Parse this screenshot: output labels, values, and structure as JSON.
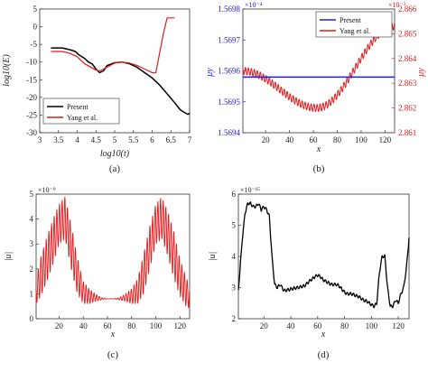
{
  "chart_data": [
    {
      "id": "a",
      "type": "line",
      "caption": "(a)",
      "xlabel": "log10(t)",
      "ylabel": "log10(E)",
      "xlim": [
        3,
        7
      ],
      "ylim": [
        -30,
        5
      ],
      "xticks": [
        "3",
        "3.5",
        "4",
        "4.5",
        "5",
        "5.5",
        "6",
        "6.5",
        "7"
      ],
      "yticks": [
        "5",
        "0",
        "-5",
        "-10",
        "-15",
        "-20",
        "-25",
        "-30"
      ],
      "legend": {
        "position": "lower-left",
        "entries": [
          "Present",
          "Yang et al."
        ]
      },
      "series": [
        {
          "name": "Present",
          "color": "#000000",
          "x": [
            3.3,
            3.6,
            3.8,
            3.95,
            4.05,
            4.2,
            4.3,
            4.4,
            4.5,
            4.6,
            4.7,
            4.8,
            5.0,
            5.2,
            5.4,
            5.6,
            5.8,
            6.0,
            6.2,
            6.4,
            6.6,
            6.75,
            6.85,
            6.95,
            7.0
          ],
          "y": [
            -6,
            -6,
            -6.5,
            -7,
            -8,
            -9,
            -10,
            -10.5,
            -12,
            -13,
            -12.5,
            -11,
            -10.2,
            -10,
            -10.5,
            -11.5,
            -13,
            -14.5,
            -16.5,
            -19,
            -21.5,
            -23.5,
            -24.2,
            -24.8,
            -24.5
          ]
        },
        {
          "name": "Yang et al.",
          "color": "#e31a1c",
          "x": [
            3.3,
            3.6,
            3.8,
            4.0,
            4.2,
            4.5,
            4.6,
            4.7,
            5.0,
            5.2,
            5.4,
            5.6,
            5.8,
            6.0,
            6.1,
            6.3,
            6.4,
            6.45,
            6.6
          ],
          "y": [
            -7,
            -7,
            -7.5,
            -8.5,
            -10.5,
            -12.3,
            -12.5,
            -12,
            -10.3,
            -10,
            -10.3,
            -11,
            -12,
            -13,
            -13,
            -2,
            2.5,
            2.5,
            2.5
          ]
        }
      ]
    },
    {
      "id": "b",
      "type": "line",
      "caption": "(b)",
      "xlabel": "x",
      "ylabel_left": "μy",
      "ylabel_right": "μy",
      "exponent_left": "×10⁻⁴",
      "exponent_right": "×10⁻³",
      "xlim": [
        1,
        128
      ],
      "ylim_left": [
        1.5694,
        1.5698
      ],
      "ylim_right": [
        2.861,
        2.866
      ],
      "xticks": [
        "20",
        "40",
        "60",
        "80",
        "100",
        "120"
      ],
      "yticks_left": [
        "1.5698",
        "1.5697",
        "1.5696",
        "1.5695",
        "1.5694"
      ],
      "yticks_right": [
        "2.866",
        "2.865",
        "2.864",
        "2.863",
        "2.862",
        "2.861"
      ],
      "legend": {
        "position": "top-right",
        "entries": [
          "Present",
          "Yang et al."
        ]
      },
      "series": [
        {
          "name": "Present",
          "color": "#1f1fe0",
          "axis": "left",
          "x": [
            1,
            128
          ],
          "y": [
            1.56958,
            1.56958
          ]
        },
        {
          "name": "Yang et al.",
          "color": "#e31a1c",
          "axis": "right",
          "mean": [
            1,
            2.8635,
            63,
            2.862,
            128,
            2.8653
          ],
          "oscillation_amplitude": 0.00015,
          "oscillation_period": 2.5
        }
      ]
    },
    {
      "id": "c",
      "type": "line",
      "caption": "(c)",
      "xlabel": "x",
      "ylabel": "|u|",
      "exponent": "×10⁻⁹",
      "xlim": [
        1,
        128
      ],
      "ylim": [
        0,
        5
      ],
      "xticks": [
        "20",
        "40",
        "60",
        "80",
        "100",
        "120"
      ],
      "yticks": [
        "5",
        "4",
        "3",
        "2",
        "1",
        "0"
      ],
      "series": [
        {
          "name": "",
          "color": "#e31a1c",
          "envelope_x": [
            1,
            5,
            10,
            15,
            20,
            25,
            30,
            35,
            40,
            45,
            50,
            55,
            60,
            65,
            70,
            75,
            80,
            85,
            90,
            95,
            100,
            105,
            110,
            115,
            120,
            125,
            128
          ],
          "envelope_upper": [
            1.6,
            2.5,
            3.3,
            4.0,
            4.6,
            4.9,
            3.8,
            2.5,
            1.5,
            1.2,
            1.0,
            0.85,
            0.8,
            0.8,
            0.85,
            1.0,
            1.2,
            1.6,
            2.6,
            3.7,
            4.6,
            4.9,
            4.3,
            3.5,
            2.4,
            1.7,
            1.3
          ],
          "envelope_lower": [
            0.6,
            0.9,
            1.5,
            2.2,
            3.0,
            3.2,
            2.0,
            1.0,
            0.6,
            0.6,
            0.7,
            0.75,
            0.8,
            0.8,
            0.75,
            0.7,
            0.6,
            0.6,
            1.0,
            2.0,
            3.0,
            3.2,
            2.5,
            1.6,
            0.9,
            0.5,
            0.4
          ],
          "oscillation_period": 2.2
        }
      ]
    },
    {
      "id": "d",
      "type": "line",
      "caption": "(d)",
      "xlabel": "x",
      "ylabel": "|u|",
      "exponent": "×10⁻¹⁵",
      "xlim": [
        1,
        128
      ],
      "ylim": [
        2,
        6
      ],
      "xticks": [
        "20",
        "40",
        "60",
        "80",
        "100",
        "120"
      ],
      "yticks": [
        "6",
        "5",
        "4",
        "3",
        "2"
      ],
      "series": [
        {
          "name": "",
          "color": "#000000",
          "x": [
            1,
            4,
            6,
            8,
            10,
            12,
            14,
            16,
            18,
            20,
            22,
            24,
            26,
            28,
            30,
            32,
            35,
            40,
            45,
            50,
            55,
            58,
            60,
            62,
            64,
            66,
            68,
            70,
            72,
            74,
            76,
            78,
            80,
            82,
            85,
            88,
            91,
            94,
            97,
            100,
            102,
            104,
            106,
            108,
            110,
            112,
            114,
            116,
            118,
            120,
            122,
            124,
            126,
            128
          ],
          "y": [
            2.9,
            4.6,
            5.4,
            5.7,
            5.7,
            5.6,
            5.6,
            5.7,
            5.5,
            5.6,
            5.5,
            5.3,
            4.0,
            3.1,
            3.0,
            3.1,
            2.9,
            2.95,
            3.0,
            3.05,
            3.25,
            3.35,
            3.4,
            3.35,
            3.25,
            3.2,
            3.15,
            3.1,
            3.1,
            3.1,
            3.05,
            2.95,
            2.85,
            2.8,
            2.8,
            2.75,
            2.7,
            2.6,
            2.55,
            2.45,
            2.4,
            2.5,
            3.5,
            4.0,
            4.0,
            3.0,
            2.4,
            2.4,
            2.6,
            2.5,
            2.8,
            3.0,
            3.6,
            4.6
          ]
        }
      ]
    }
  ]
}
